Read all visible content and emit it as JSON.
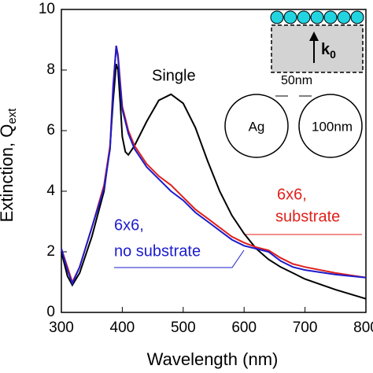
{
  "chart_data": {
    "type": "line",
    "xlabel": "Wavelength (nm)",
    "ylabel": "Extinction, Q",
    "ylabel_sub": "ext",
    "x": [
      300,
      310,
      318,
      330,
      350,
      370,
      380,
      385,
      390,
      393,
      397,
      400,
      405,
      410,
      420,
      440,
      460,
      480,
      500,
      520,
      540,
      560,
      580,
      600,
      620,
      640,
      660,
      680,
      700,
      750,
      800
    ],
    "series": [
      {
        "name": "Single",
        "color": "#000000",
        "values": [
          2.0,
          1.2,
          0.9,
          1.3,
          2.5,
          4.0,
          5.5,
          7.0,
          8.2,
          8.0,
          6.8,
          5.8,
          5.3,
          5.2,
          5.5,
          6.3,
          7.0,
          7.2,
          6.9,
          6.1,
          5.0,
          4.0,
          3.2,
          2.6,
          2.1,
          1.75,
          1.5,
          1.3,
          1.1,
          0.75,
          0.45
        ]
      },
      {
        "name": "6x6, substrate",
        "color": "#e0201b",
        "values": [
          2.1,
          1.5,
          1.0,
          1.5,
          2.8,
          4.2,
          5.5,
          7.5,
          8.8,
          8.5,
          7.5,
          6.8,
          6.4,
          6.0,
          5.5,
          4.9,
          4.5,
          4.2,
          3.8,
          3.4,
          3.1,
          2.8,
          2.5,
          2.3,
          2.15,
          2.05,
          1.8,
          1.6,
          1.5,
          1.3,
          1.15
        ]
      },
      {
        "name": "6x6, no substrate",
        "color": "#1c1ccc",
        "values": [
          2.1,
          1.4,
          0.95,
          1.5,
          2.8,
          4.1,
          5.4,
          7.4,
          8.8,
          8.4,
          7.4,
          6.7,
          6.3,
          5.9,
          5.4,
          4.8,
          4.4,
          4.0,
          3.7,
          3.3,
          3.0,
          2.7,
          2.4,
          2.2,
          2.1,
          2.0,
          1.7,
          1.5,
          1.4,
          1.25,
          1.15
        ]
      }
    ],
    "xlim": [
      300,
      800
    ],
    "ylim": [
      0,
      10
    ],
    "xticks": [
      300,
      400,
      500,
      600,
      700,
      800
    ],
    "yticks": [
      0,
      2,
      4,
      6,
      8,
      10
    ],
    "annotations": {
      "single": "Single",
      "sub1": "6x6,",
      "sub2": "substrate",
      "nosub1": "6x6,",
      "nosub2": "no substrate",
      "gap": "50nm",
      "ag": "Ag",
      "diam": "100nm",
      "k": "k",
      "k_sub": "0"
    }
  }
}
